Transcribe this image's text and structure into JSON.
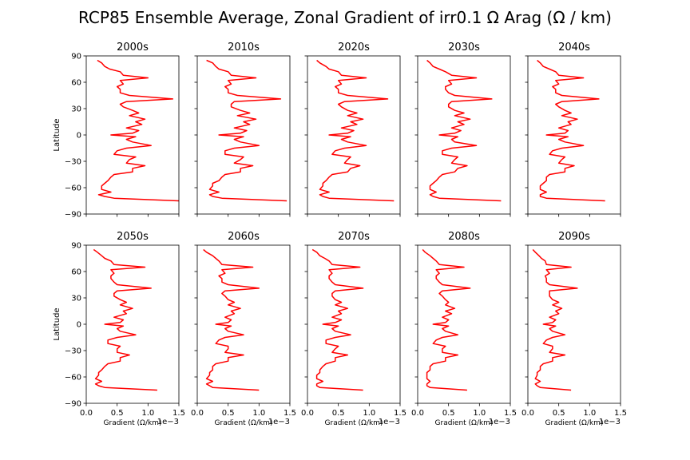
{
  "title": "RCP85 Ensemble Average, Zonal Gradient of irr0.1 Ω Arag (Ω / km)",
  "colors": {
    "line": "#ff0000",
    "axes": "#000000",
    "background": "#ffffff"
  },
  "chart_data": {
    "type": "line",
    "grid": false,
    "shared_axes": {
      "xlabel": "Gradient (Ω/km)",
      "ylabel": "Latitude",
      "x_scale_label": "1e−3",
      "x_scale_factor": 0.001,
      "xlim": [
        0.0,
        1.5
      ],
      "ylim": [
        -90,
        90
      ],
      "xticks": [
        "0.0",
        "0.5",
        "1.0",
        "1.5"
      ],
      "yticks": [
        "90",
        "60",
        "30",
        "0",
        "−30",
        "−60",
        "−90"
      ],
      "ytick_values": [
        90,
        60,
        30,
        0,
        -30,
        -60,
        -90
      ]
    },
    "latitudes": [
      85,
      82,
      78,
      75,
      72,
      68,
      65,
      62,
      58,
      55,
      52,
      48,
      45,
      41,
      38,
      35,
      32,
      28,
      25,
      22,
      18,
      15,
      12,
      8,
      5,
      2,
      0,
      -2,
      -5,
      -8,
      -12,
      -15,
      -18,
      -22,
      -25,
      -28,
      -32,
      -35,
      -38,
      -42,
      -45,
      -48,
      -52,
      -55,
      -58,
      -62,
      -65,
      -68,
      -70,
      -72,
      -75
    ],
    "panels": [
      {
        "title": "2000s",
        "x": [
          0.18,
          0.25,
          0.3,
          0.38,
          0.55,
          0.6,
          1.0,
          0.55,
          0.6,
          0.5,
          0.55,
          0.55,
          0.7,
          1.4,
          0.65,
          0.55,
          0.6,
          0.75,
          0.85,
          0.7,
          0.95,
          0.8,
          0.9,
          0.65,
          0.85,
          0.75,
          0.4,
          0.8,
          0.65,
          0.75,
          1.05,
          0.65,
          0.5,
          0.45,
          0.8,
          0.7,
          0.65,
          0.95,
          0.75,
          0.75,
          0.45,
          0.4,
          0.35,
          0.3,
          0.25,
          0.25,
          0.4,
          0.2,
          0.3,
          0.45,
          1.5
        ]
      },
      {
        "title": "2010s",
        "x": [
          0.15,
          0.25,
          0.3,
          0.35,
          0.5,
          0.55,
          0.95,
          0.5,
          0.55,
          0.45,
          0.5,
          0.5,
          0.65,
          1.35,
          0.6,
          0.55,
          0.55,
          0.7,
          0.85,
          0.65,
          0.95,
          0.75,
          0.85,
          0.6,
          0.8,
          0.7,
          0.35,
          0.75,
          0.6,
          0.7,
          1.0,
          0.6,
          0.45,
          0.45,
          0.75,
          0.7,
          0.6,
          0.9,
          0.7,
          0.7,
          0.45,
          0.4,
          0.35,
          0.25,
          0.25,
          0.2,
          0.35,
          0.2,
          0.25,
          0.4,
          1.45
        ]
      },
      {
        "title": "2020s",
        "x": [
          0.15,
          0.2,
          0.3,
          0.35,
          0.5,
          0.55,
          0.95,
          0.5,
          0.55,
          0.45,
          0.5,
          0.5,
          0.65,
          1.3,
          0.6,
          0.5,
          0.55,
          0.65,
          0.8,
          0.65,
          0.9,
          0.7,
          0.8,
          0.55,
          0.75,
          0.65,
          0.35,
          0.7,
          0.55,
          0.65,
          0.95,
          0.6,
          0.45,
          0.4,
          0.7,
          0.65,
          0.6,
          0.85,
          0.7,
          0.65,
          0.4,
          0.35,
          0.3,
          0.25,
          0.25,
          0.2,
          0.35,
          0.2,
          0.25,
          0.35,
          1.4
        ]
      },
      {
        "title": "2030s",
        "x": [
          0.15,
          0.2,
          0.25,
          0.35,
          0.45,
          0.55,
          0.95,
          0.5,
          0.55,
          0.45,
          0.45,
          0.5,
          0.6,
          1.2,
          0.55,
          0.5,
          0.5,
          0.6,
          0.75,
          0.6,
          0.85,
          0.65,
          0.75,
          0.55,
          0.7,
          0.6,
          0.35,
          0.65,
          0.55,
          0.6,
          0.95,
          0.55,
          0.4,
          0.4,
          0.65,
          0.6,
          0.55,
          0.8,
          0.65,
          0.6,
          0.4,
          0.35,
          0.3,
          0.25,
          0.2,
          0.2,
          0.3,
          0.2,
          0.25,
          0.35,
          1.35
        ]
      },
      {
        "title": "2040s",
        "x": [
          0.15,
          0.2,
          0.25,
          0.35,
          0.45,
          0.5,
          0.9,
          0.45,
          0.5,
          0.4,
          0.45,
          0.45,
          0.55,
          1.15,
          0.55,
          0.45,
          0.5,
          0.6,
          0.7,
          0.55,
          0.8,
          0.65,
          0.7,
          0.5,
          0.65,
          0.6,
          0.3,
          0.65,
          0.5,
          0.6,
          0.9,
          0.55,
          0.4,
          0.35,
          0.6,
          0.55,
          0.5,
          0.75,
          0.6,
          0.6,
          0.35,
          0.3,
          0.3,
          0.25,
          0.2,
          0.2,
          0.3,
          0.2,
          0.2,
          0.3,
          1.25
        ]
      },
      {
        "title": "2050s",
        "x": [
          0.12,
          0.18,
          0.25,
          0.3,
          0.4,
          0.45,
          0.95,
          0.4,
          0.45,
          0.4,
          0.4,
          0.45,
          0.5,
          1.05,
          0.5,
          0.45,
          0.45,
          0.55,
          0.65,
          0.55,
          0.75,
          0.6,
          0.65,
          0.45,
          0.6,
          0.55,
          0.3,
          0.6,
          0.5,
          0.55,
          0.8,
          0.5,
          0.35,
          0.35,
          0.55,
          0.5,
          0.5,
          0.7,
          0.55,
          0.55,
          0.35,
          0.3,
          0.25,
          0.2,
          0.2,
          0.15,
          0.25,
          0.15,
          0.2,
          0.3,
          1.15
        ]
      },
      {
        "title": "2060s",
        "x": [
          0.1,
          0.15,
          0.25,
          0.3,
          0.35,
          0.4,
          0.9,
          0.4,
          0.45,
          0.35,
          0.4,
          0.4,
          0.5,
          1.0,
          0.45,
          0.4,
          0.45,
          0.5,
          0.6,
          0.5,
          0.7,
          0.55,
          0.6,
          0.45,
          0.55,
          0.5,
          0.3,
          0.55,
          0.45,
          0.5,
          0.75,
          0.45,
          0.35,
          0.3,
          0.5,
          0.5,
          0.45,
          0.75,
          0.5,
          0.5,
          0.3,
          0.25,
          0.25,
          0.2,
          0.2,
          0.15,
          0.25,
          0.15,
          0.2,
          0.25,
          1.0
        ]
      },
      {
        "title": "2070s",
        "x": [
          0.08,
          0.15,
          0.2,
          0.28,
          0.35,
          0.4,
          0.85,
          0.35,
          0.4,
          0.35,
          0.35,
          0.4,
          0.45,
          0.9,
          0.45,
          0.4,
          0.4,
          0.45,
          0.55,
          0.45,
          0.65,
          0.5,
          0.55,
          0.4,
          0.55,
          0.45,
          0.25,
          0.5,
          0.4,
          0.45,
          0.7,
          0.45,
          0.3,
          0.3,
          0.5,
          0.45,
          0.4,
          0.65,
          0.45,
          0.45,
          0.3,
          0.25,
          0.2,
          0.2,
          0.15,
          0.15,
          0.25,
          0.15,
          0.15,
          0.2,
          0.9
        ]
      },
      {
        "title": "2080s",
        "x": [
          0.08,
          0.12,
          0.2,
          0.25,
          0.3,
          0.35,
          0.75,
          0.3,
          0.35,
          0.3,
          0.3,
          0.35,
          0.4,
          0.85,
          0.4,
          0.35,
          0.4,
          0.45,
          0.5,
          0.45,
          0.6,
          0.45,
          0.55,
          0.4,
          0.5,
          0.45,
          0.25,
          0.5,
          0.4,
          0.45,
          0.65,
          0.4,
          0.3,
          0.25,
          0.45,
          0.4,
          0.4,
          0.65,
          0.45,
          0.45,
          0.25,
          0.2,
          0.2,
          0.15,
          0.15,
          0.15,
          0.2,
          0.15,
          0.15,
          0.2,
          0.8
        ]
      },
      {
        "title": "2090s",
        "x": [
          0.08,
          0.12,
          0.18,
          0.22,
          0.28,
          0.3,
          0.7,
          0.3,
          0.35,
          0.28,
          0.3,
          0.3,
          0.35,
          0.8,
          0.35,
          0.35,
          0.35,
          0.4,
          0.5,
          0.4,
          0.55,
          0.45,
          0.5,
          0.35,
          0.45,
          0.4,
          0.25,
          0.45,
          0.35,
          0.4,
          0.6,
          0.4,
          0.3,
          0.25,
          0.4,
          0.4,
          0.35,
          0.6,
          0.4,
          0.4,
          0.25,
          0.2,
          0.2,
          0.15,
          0.15,
          0.12,
          0.2,
          0.12,
          0.15,
          0.2,
          0.7
        ]
      }
    ]
  }
}
